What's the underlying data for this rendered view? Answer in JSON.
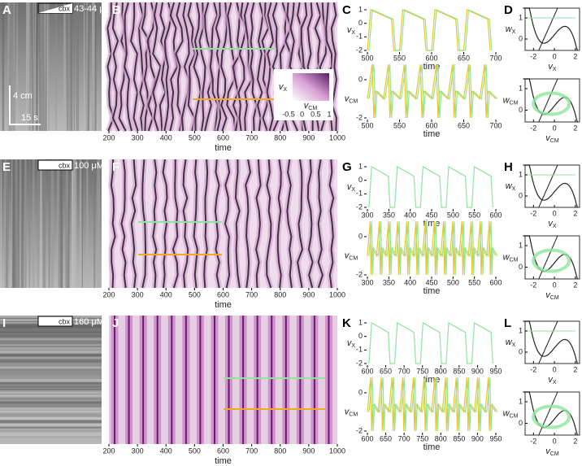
{
  "rows": [
    {
      "letters": [
        "A",
        "B",
        "C",
        "D"
      ],
      "drug": "cbx",
      "concentration": "43-44 μM",
      "scale_bar": {
        "vertical": "4 cm",
        "horizontal": "15 s"
      },
      "kymograph": {
        "xticks": [
          200,
          300,
          400,
          500,
          600,
          700,
          800,
          900,
          1000
        ],
        "xlabel": "time",
        "colorbar": {
          "ylabel": {
            "symbol": "v",
            "subscript": "X"
          },
          "xlabel": {
            "symbol": "v",
            "subscript": "CM"
          },
          "xticks": [
            -0.5,
            0,
            0.5,
            1
          ]
        }
      },
      "traces": [
        {
          "ylabel": {
            "symbol": "v",
            "subscript": "X"
          },
          "yticks": [
            1,
            0,
            -1,
            -2
          ],
          "xticks": [
            500,
            550,
            600,
            650,
            700
          ],
          "xlabel": "time"
        },
        {
          "ylabel": {
            "symbol": "v",
            "subscript": "CM"
          },
          "yticks": [
            0,
            -2
          ],
          "xticks": [
            500,
            550,
            600,
            650,
            700
          ],
          "xlabel": "time"
        }
      ],
      "phase": [
        {
          "ylabel": {
            "symbol": "w",
            "subscript": "X"
          },
          "yticks": [
            1,
            0
          ],
          "xticks": [
            -2,
            0,
            2
          ],
          "xlabel": {
            "symbol": "v",
            "subscript": "X"
          }
        },
        {
          "ylabel": {
            "symbol": "w",
            "subscript": "CM"
          },
          "yticks": [
            1,
            0
          ],
          "xticks": [
            -2,
            0,
            2
          ],
          "xlabel": {
            "symbol": "v",
            "subscript": "CM"
          }
        }
      ]
    },
    {
      "letters": [
        "E",
        "F",
        "G",
        "H"
      ],
      "drug": "cbx",
      "concentration": "100 μM",
      "kymograph": {
        "xticks": [
          200,
          300,
          400,
          500,
          600,
          700,
          800,
          900,
          1000
        ],
        "xlabel": "time"
      },
      "traces": [
        {
          "ylabel": {
            "symbol": "v",
            "subscript": "X"
          },
          "yticks": [
            1,
            0,
            -1,
            -2
          ],
          "xticks": [
            300,
            350,
            400,
            450,
            500,
            550,
            600
          ],
          "xlabel": "time"
        },
        {
          "ylabel": {
            "symbol": "v",
            "subscript": "CM"
          },
          "yticks": [
            0,
            -2
          ],
          "xticks": [
            300,
            350,
            400,
            450,
            500,
            550,
            600
          ],
          "xlabel": "time"
        }
      ],
      "phase": [
        {
          "ylabel": {
            "symbol": "w",
            "subscript": "X"
          },
          "yticks": [
            1,
            0
          ],
          "xticks": [
            -2,
            0,
            2
          ],
          "xlabel": {
            "symbol": "v",
            "subscript": "X"
          }
        },
        {
          "ylabel": {
            "symbol": "w",
            "subscript": "CM"
          },
          "yticks": [
            1,
            0
          ],
          "xticks": [
            -2,
            0,
            2
          ],
          "xlabel": {
            "symbol": "v",
            "subscript": "CM"
          }
        }
      ]
    },
    {
      "letters": [
        "I",
        "J",
        "K",
        "L"
      ],
      "drug": "cbx",
      "concentration": "160 μM",
      "kymograph": {
        "xticks": [
          200,
          300,
          400,
          500,
          600,
          700,
          800,
          900,
          1000
        ],
        "xlabel": "time"
      },
      "traces": [
        {
          "ylabel": {
            "symbol": "v",
            "subscript": "X"
          },
          "yticks": [
            1,
            0,
            -1,
            -2
          ],
          "xticks": [
            600,
            650,
            700,
            750,
            800,
            850,
            900,
            950
          ],
          "xlabel": "time"
        },
        {
          "ylabel": {
            "symbol": "v",
            "subscript": "CM"
          },
          "yticks": [
            0,
            -2
          ],
          "xticks": [
            600,
            650,
            700,
            750,
            800,
            850,
            900,
            950
          ],
          "xlabel": "time"
        }
      ],
      "phase": [
        {
          "ylabel": {
            "symbol": "w",
            "subscript": "X"
          },
          "yticks": [
            1,
            0
          ],
          "xticks": [
            -2,
            0,
            2
          ],
          "xlabel": {
            "symbol": "v",
            "subscript": "X"
          }
        },
        {
          "ylabel": {
            "symbol": "w",
            "subscript": "CM"
          },
          "yticks": [
            1,
            0
          ],
          "xticks": [
            -2,
            0,
            2
          ],
          "xlabel": {
            "symbol": "v",
            "subscript": "CM"
          }
        }
      ]
    }
  ]
}
